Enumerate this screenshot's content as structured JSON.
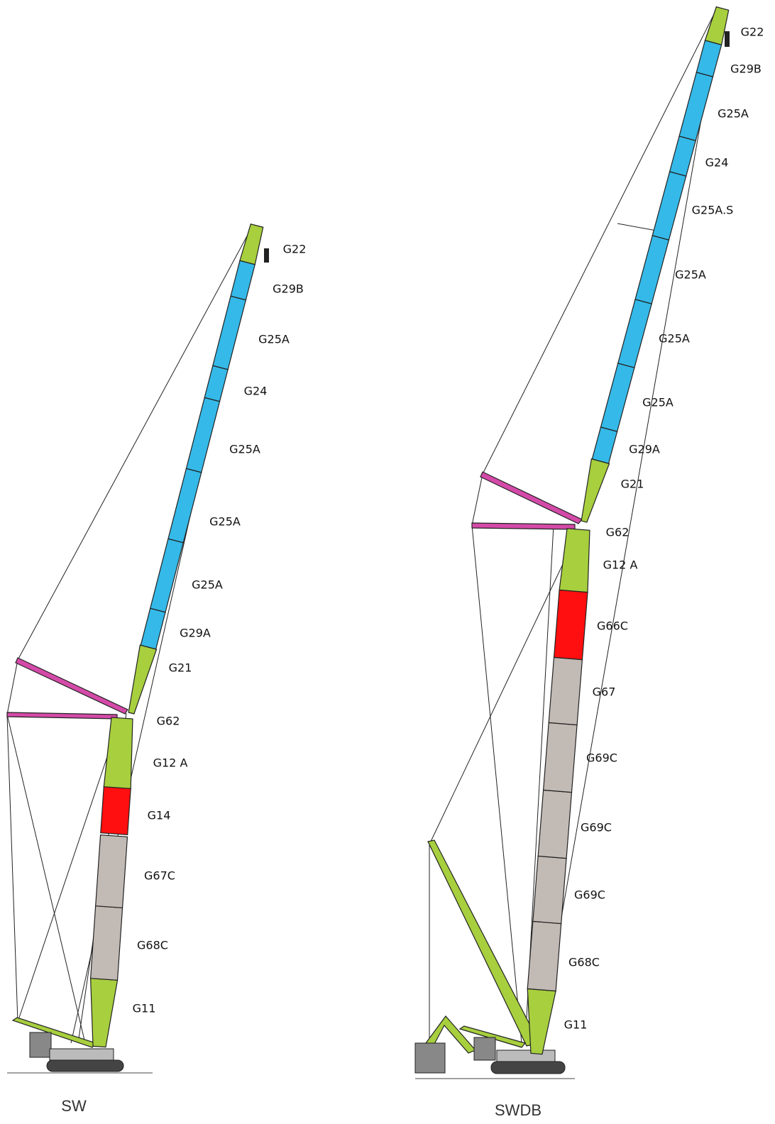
{
  "cranes": [
    {
      "name": "SW",
      "labels": [
        "G22",
        "G29B",
        "G25A",
        "G24",
        "G25A",
        "G25A",
        "G25A",
        "G29A",
        "G21",
        "G62",
        "G12 A",
        "G14",
        "G67C",
        "G68C",
        "G11"
      ]
    },
    {
      "name": "SWDB",
      "labels": [
        "G22",
        "G29B",
        "G25A",
        "G24",
        "G25A.S",
        "G25A",
        "G25A",
        "G25A",
        "G29A",
        "G21",
        "G62",
        "G12 A",
        "G66C",
        "G67",
        "G69C",
        "G69C",
        "G69C",
        "G68C",
        "G11"
      ]
    }
  ]
}
